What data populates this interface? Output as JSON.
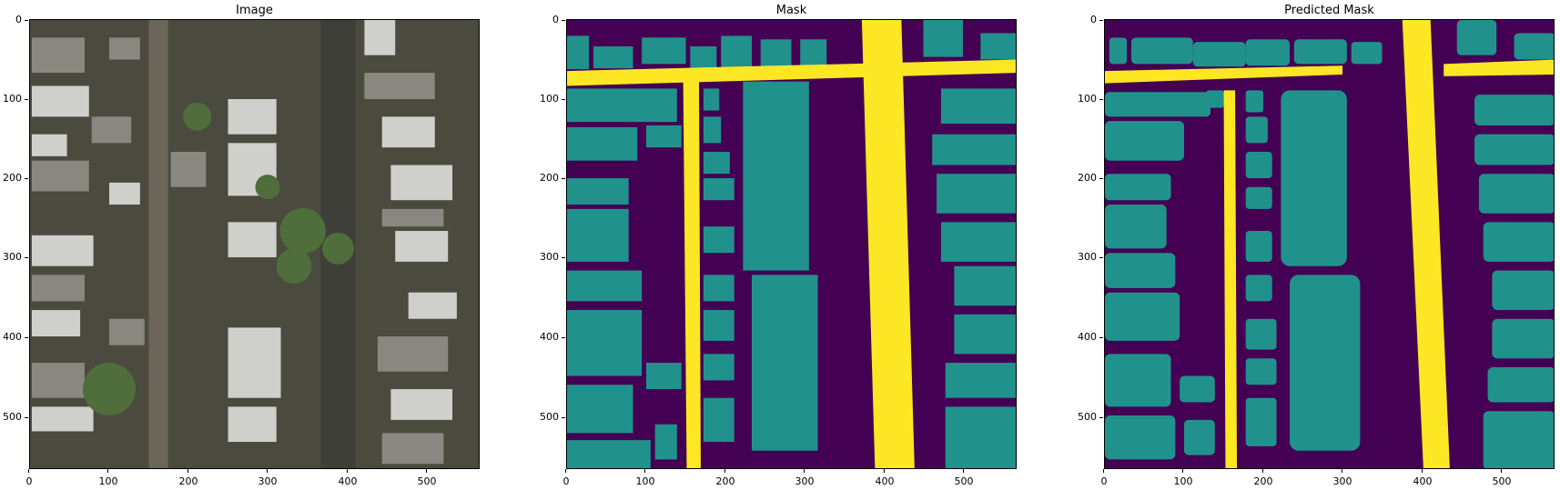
{
  "figure": {
    "panels": [
      {
        "title": "Image"
      },
      {
        "title": "Mask"
      },
      {
        "title": "Predicted Mask"
      }
    ],
    "y_ticks": [
      "0",
      "100",
      "200",
      "300",
      "400",
      "500"
    ],
    "x_ticks": [
      "0",
      "100",
      "200",
      "300",
      "400",
      "500"
    ]
  },
  "colors": {
    "background": "#440154",
    "building": "#21918c",
    "road": "#fde725"
  }
}
